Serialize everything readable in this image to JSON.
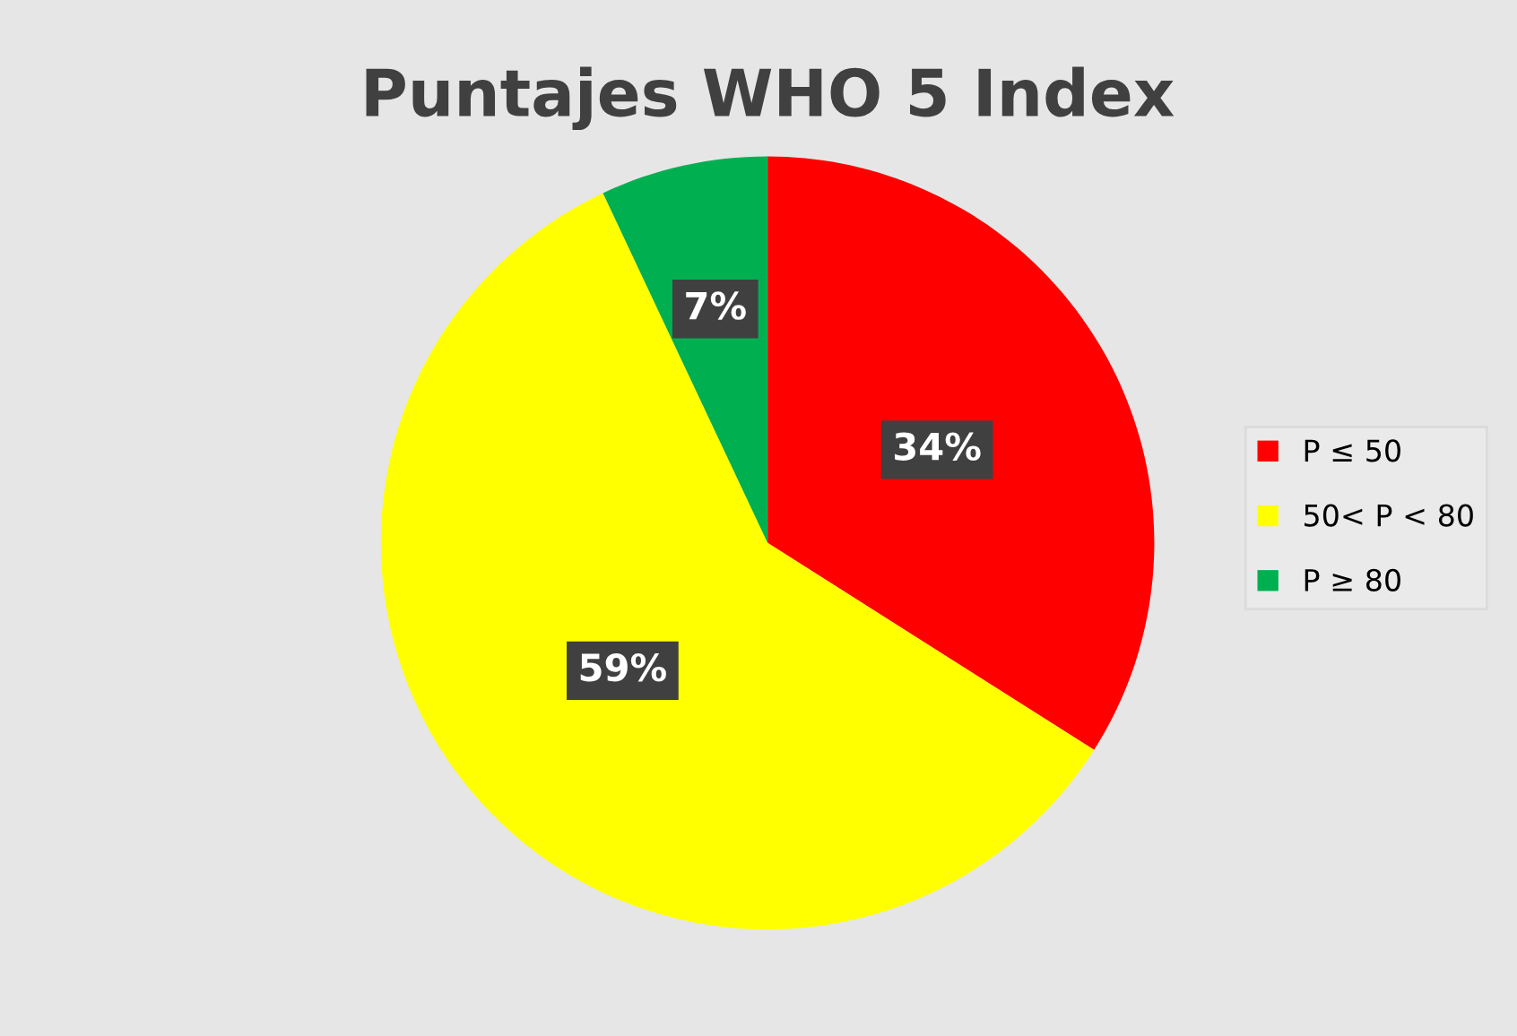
{
  "chart_data": {
    "type": "pie",
    "title": "Puntajes WHO 5 Index",
    "categories": [
      "P ≤ 50",
      "50< P < 80",
      "P ≥ 80"
    ],
    "values": [
      34,
      59,
      7
    ],
    "colors": [
      "#ff0000",
      "#ffff00",
      "#00b050"
    ],
    "value_labels": [
      "34%",
      "59%",
      "7%"
    ],
    "legend": "right"
  }
}
